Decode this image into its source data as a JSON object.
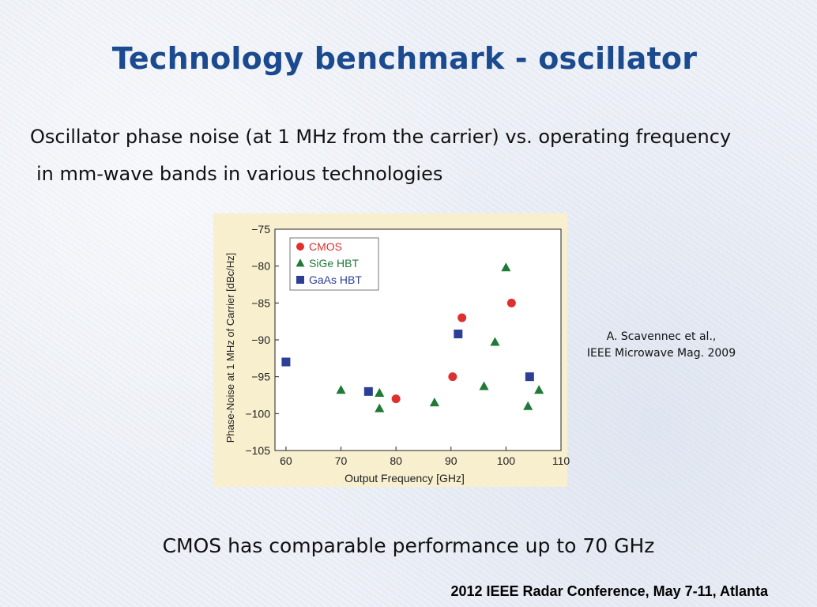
{
  "slide": {
    "title": "Technology benchmark - oscillator",
    "subtitle_line1": "Oscillator phase noise (at 1 MHz from the carrier) vs. operating frequency",
    "subtitle_line2": "in mm-wave bands  in various technologies",
    "citation_line1": "A. Scavennec et al.,",
    "citation_line2": "IEEE Microwave  Mag. 2009",
    "conclusion": "CMOS has comparable performance up to 70 GHz",
    "footer": "2012 IEEE Radar Conference, May 7-11, Atlanta"
  },
  "chart_data": {
    "type": "scatter",
    "xlabel": "Output Frequency [GHz]",
    "ylabel": "Phase-Noise at 1 MHz of Carrier [dBc/Hz]",
    "xlim": [
      58,
      110
    ],
    "ylim": [
      -105,
      -75
    ],
    "xticks": [
      60,
      70,
      80,
      90,
      100,
      110
    ],
    "yticks": [
      -75,
      -80,
      -85,
      -90,
      -95,
      -100,
      -105
    ],
    "ytick_labels": [
      "−75",
      "−80",
      "−85",
      "−90",
      "−95",
      "−100",
      "−105"
    ],
    "grid": false,
    "legend_position": "top-left",
    "panel_background": "#f8efcf",
    "plot_background": "#ffffff",
    "series": [
      {
        "name": "CMOS",
        "marker": "circle",
        "color": "#e02f2f",
        "points": [
          [
            80,
            -98
          ],
          [
            90.3,
            -95
          ],
          [
            92,
            -87
          ],
          [
            101,
            -85
          ]
        ]
      },
      {
        "name": "SiGe HBT",
        "marker": "triangle",
        "color": "#1f7a35",
        "points": [
          [
            70,
            -96.8
          ],
          [
            77,
            -97.2
          ],
          [
            77,
            -99.3
          ],
          [
            87,
            -98.5
          ],
          [
            96,
            -96.3
          ],
          [
            98,
            -90.3
          ],
          [
            100,
            -80.2
          ],
          [
            104,
            -99
          ],
          [
            106,
            -96.8
          ]
        ]
      },
      {
        "name": "GaAs HBT",
        "marker": "square",
        "color": "#2c3f95",
        "points": [
          [
            60,
            -93
          ],
          [
            75,
            -97
          ],
          [
            91.3,
            -89.2
          ],
          [
            104.3,
            -95
          ]
        ]
      }
    ]
  }
}
